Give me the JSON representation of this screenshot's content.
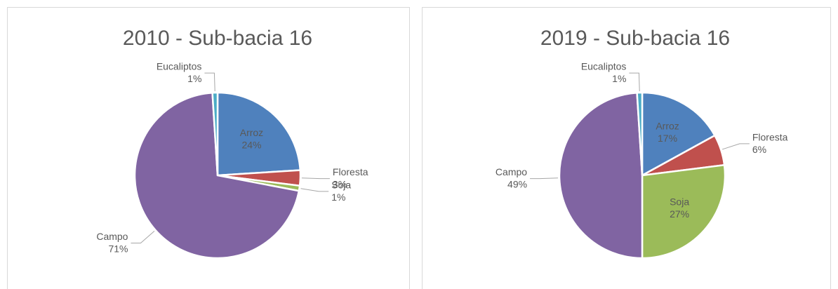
{
  "chart_data": [
    {
      "type": "pie",
      "title": "2010 - Sub-bacia 16",
      "categories": [
        "Arroz",
        "Floresta",
        "Soja",
        "Campo",
        "Eucaliptos"
      ],
      "values": [
        24,
        3,
        1,
        71,
        1
      ],
      "value_labels": [
        "24%",
        "3%",
        "1%",
        "71%",
        "1%"
      ],
      "colors": [
        "#4f81bd",
        "#c0504d",
        "#9bbb59",
        "#8064a2",
        "#4bacc6"
      ]
    },
    {
      "type": "pie",
      "title": "2019 - Sub-bacia 16",
      "categories": [
        "Arroz",
        "Floresta",
        "Soja",
        "Campo",
        "Eucaliptos"
      ],
      "values": [
        17,
        6,
        27,
        49,
        1
      ],
      "value_labels": [
        "17%",
        "6%",
        "27%",
        "49%",
        "1%"
      ],
      "colors": [
        "#4f81bd",
        "#c0504d",
        "#9bbb59",
        "#8064a2",
        "#4bacc6"
      ]
    }
  ]
}
